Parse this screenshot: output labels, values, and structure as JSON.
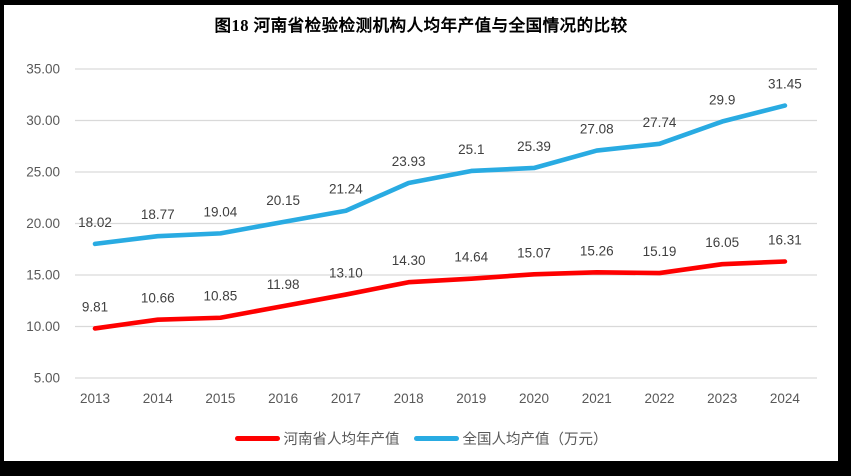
{
  "chart_data": {
    "type": "line",
    "title": "图18  河南省检验检测机构人均年产值与全国情况的比较",
    "xlabel": "",
    "ylabel": "",
    "categories": [
      "2013",
      "2014",
      "2015",
      "2016",
      "2017",
      "2018",
      "2019",
      "2020",
      "2021",
      "2022",
      "2023",
      "2024"
    ],
    "series": [
      {
        "name": "河南省人均年产值",
        "color": "#FE0000",
        "values": [
          9.81,
          10.66,
          10.85,
          11.98,
          13.1,
          14.3,
          14.64,
          15.07,
          15.26,
          15.19,
          16.05,
          16.31
        ],
        "labels": [
          "9.81",
          "10.66",
          "10.85",
          "11.98",
          "13.10",
          "14.30",
          "14.64",
          "15.07",
          "15.26",
          "15.19",
          "16.05",
          "16.31"
        ]
      },
      {
        "name": "全国人均产值（万元）",
        "color": "#29ABE2",
        "values": [
          18.02,
          18.77,
          19.04,
          20.15,
          21.24,
          23.93,
          25.1,
          25.39,
          27.08,
          27.74,
          29.9,
          31.45
        ],
        "labels": [
          "18.02",
          "18.77",
          "19.04",
          "20.15",
          "21.24",
          "23.93",
          "25.1",
          "25.39",
          "27.08",
          "27.74",
          "29.9",
          "31.45"
        ]
      }
    ],
    "ylim": [
      5,
      35
    ],
    "y_ticks": [
      "35.00",
      "30.00",
      "25.00",
      "20.00",
      "15.00",
      "10.00",
      "5.00"
    ],
    "grid": true,
    "legend_position": "bottom",
    "colors": {
      "gridline": "#D9D9D9",
      "axis_text": "#595959",
      "data_label": "#404040",
      "title_text": "#000000",
      "frame": "#000000",
      "background": "#FFFFFF"
    }
  }
}
